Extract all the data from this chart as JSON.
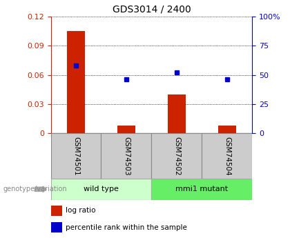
{
  "title": "GDS3014 / 2400",
  "samples": [
    "GSM74501",
    "GSM74503",
    "GSM74502",
    "GSM74504"
  ],
  "log_ratio": [
    0.105,
    0.008,
    0.04,
    0.008
  ],
  "percentile_rank_pct": [
    58,
    46,
    52,
    46
  ],
  "ylim_left": [
    0,
    0.12
  ],
  "ylim_right": [
    0,
    100
  ],
  "yticks_left": [
    0,
    0.03,
    0.06,
    0.09,
    0.12
  ],
  "yticks_right": [
    0,
    25,
    50,
    75,
    100
  ],
  "ytick_labels_left": [
    "0",
    "0.03",
    "0.06",
    "0.09",
    "0.12"
  ],
  "ytick_labels_right": [
    "0",
    "25",
    "50",
    "75",
    "100%"
  ],
  "bar_color": "#cc2200",
  "scatter_color": "#0000cc",
  "groups": [
    {
      "label": "wild type",
      "indices": [
        0,
        1
      ],
      "color": "#ccffcc",
      "edge_color": "#aaaaaa"
    },
    {
      "label": "mmi1 mutant",
      "indices": [
        2,
        3
      ],
      "color": "#66ee66",
      "edge_color": "#aaaaaa"
    }
  ],
  "group_label_text": "genotype/variation",
  "legend_items": [
    {
      "color": "#cc2200",
      "label": "log ratio"
    },
    {
      "color": "#0000cc",
      "label": "percentile rank within the sample"
    }
  ],
  "bar_width": 0.35,
  "sample_box_color": "#cccccc",
  "sample_box_edge": "#888888",
  "fig_bg": "#ffffff"
}
